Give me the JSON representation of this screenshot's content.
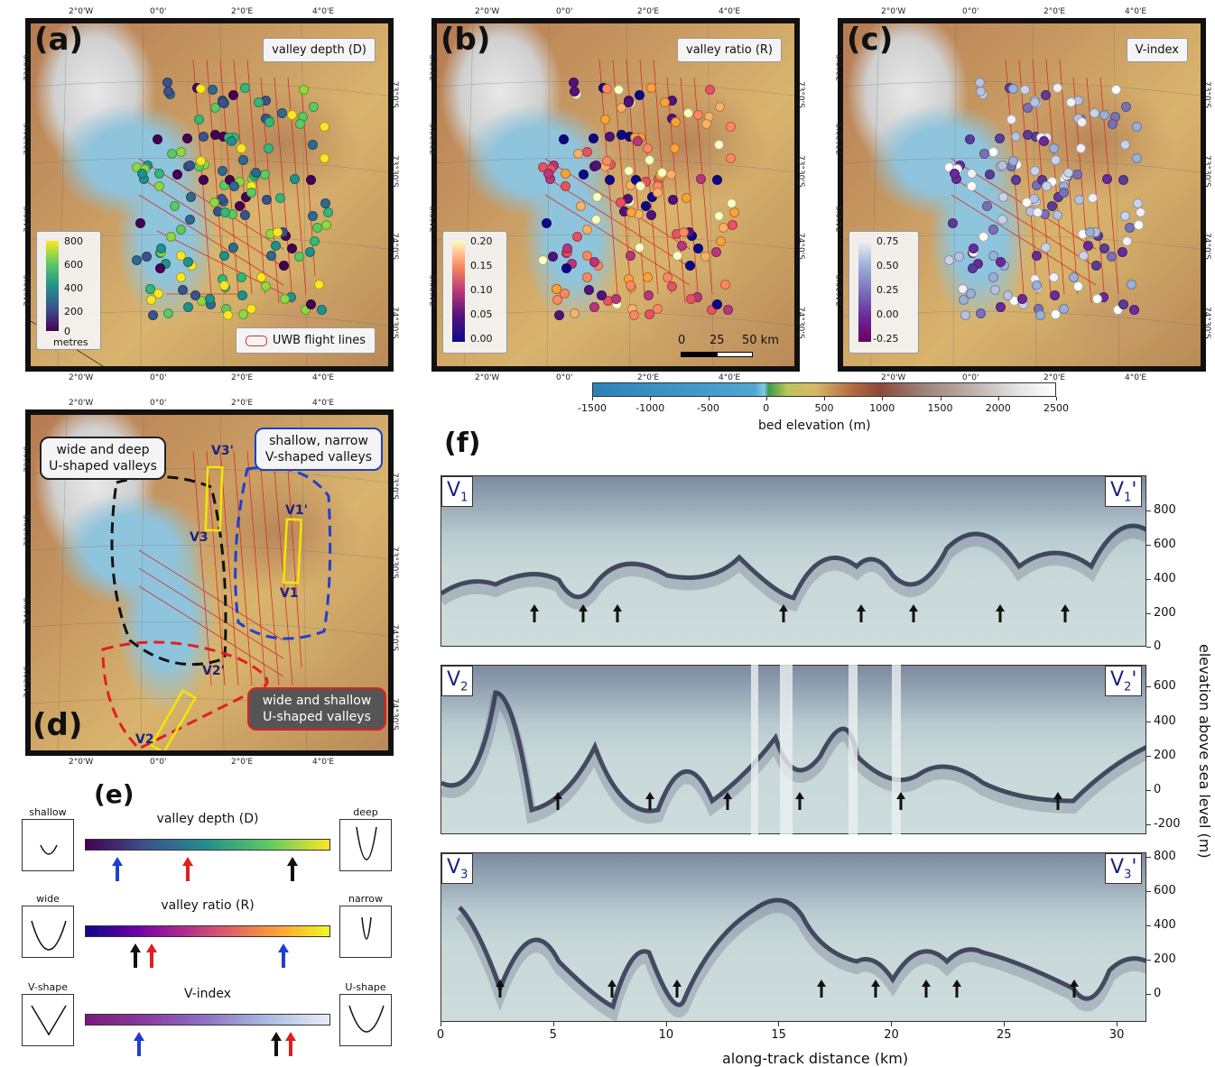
{
  "panels": {
    "a": {
      "letter": "(a)",
      "label": "valley depth (D)",
      "colorbar": {
        "ticks": [
          "800",
          "600",
          "400",
          "200",
          "0"
        ],
        "unit": "metres"
      },
      "legend": "UWB flight lines"
    },
    "b": {
      "letter": "(b)",
      "label": "valley ratio (R)",
      "colorbar": {
        "ticks": [
          "0.20",
          "0.15",
          "0.10",
          "0.05",
          "0.00"
        ]
      },
      "scalebar": {
        "ticks": [
          "0",
          "25",
          "50 km"
        ]
      }
    },
    "c": {
      "letter": "(c)",
      "label": "V-index",
      "colorbar": {
        "ticks": [
          "0.75",
          "0.50",
          "0.25",
          "0.00",
          "-0.25"
        ]
      }
    },
    "d": {
      "letter": "(d)",
      "regions": {
        "black": "wide and deep\nU-shaped valleys",
        "blue": "shallow, narrow\nV-shaped valleys",
        "red": "wide and shallow\nU-shaped valleys"
      },
      "track_labels": [
        "V3'",
        "V3",
        "V1'",
        "V1",
        "V2'",
        "V2"
      ]
    },
    "e": {
      "letter": "(e)",
      "rows": [
        {
          "left": "shallow",
          "right": "deep",
          "title": "valley depth (D)"
        },
        {
          "left": "wide",
          "right": "narrow",
          "title": "valley ratio (R)"
        },
        {
          "left": "V-shape",
          "right": "U-shape",
          "title": "V-index"
        }
      ]
    },
    "f": {
      "letter": "(f)",
      "profiles": [
        {
          "start": "V",
          "sub": "1",
          "end": "V",
          "endsub": "1",
          "prime": "'",
          "yticks": [
            "800",
            "600",
            "400",
            "200",
            "0"
          ]
        },
        {
          "start": "V",
          "sub": "2",
          "end": "V",
          "endsub": "2",
          "prime": "'",
          "yticks": [
            "600",
            "400",
            "200",
            "0",
            "-200"
          ]
        },
        {
          "start": "V",
          "sub": "3",
          "end": "V",
          "endsub": "3",
          "prime": "'",
          "yticks": [
            "800",
            "600",
            "400",
            "200",
            "0"
          ]
        }
      ],
      "xticks": [
        "0",
        "5",
        "10",
        "15",
        "20",
        "25",
        "30"
      ],
      "xlabel": "along-track distance (km)",
      "ylabel": "elevation above sea level (m)"
    }
  },
  "map_ticks": {
    "lon_top": [
      "2°0'W",
      "0°0'",
      "2°0'E",
      "4°0'E"
    ],
    "lon_bottom": [
      "2°0'W",
      "0°0'",
      "2°0'E",
      "4°0'E"
    ],
    "lat_left": [
      "73°0'S",
      "73°30'S",
      "74°0'S",
      "74°30'S"
    ],
    "lat_right": [
      "73°0'S",
      "73°30'S",
      "74°0'S",
      "74°30'S"
    ]
  },
  "bed_colorbar": {
    "ticks": [
      "-1500",
      "-1000",
      "-500",
      "0",
      "500",
      "1000",
      "1500",
      "2000",
      "2500"
    ],
    "label": "bed elevation (m)"
  }
}
